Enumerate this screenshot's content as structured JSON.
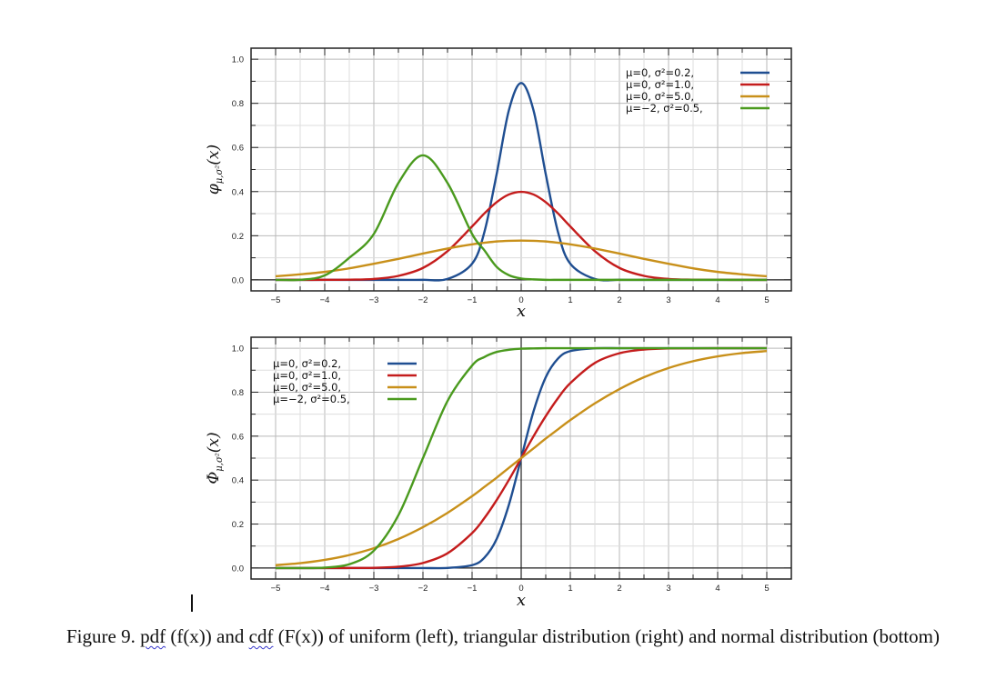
{
  "caption": {
    "prefix": "Figure 9. ",
    "pdf_word": "pdf",
    "pdf_paren": " (f(x)) and ",
    "cdf_word": "cdf",
    "rest": " (F(x)) of uniform (left), triangular distribution (right) and normal distribution (bottom)"
  },
  "chart_data": [
    {
      "type": "line",
      "title": "",
      "xlabel": "x",
      "ylabel": "φμ,σ²(x)",
      "xlim": [
        -5.5,
        5.5
      ],
      "ylim": [
        -0.05,
        1.05
      ],
      "xticks": [
        "−5",
        "−4",
        "−3",
        "−2",
        "−1",
        "0",
        "1",
        "2",
        "3",
        "4",
        "5"
      ],
      "yticks": [
        "0.0",
        "0.2",
        "0.4",
        "0.6",
        "0.8",
        "1.0"
      ],
      "grid": true,
      "legend_position": "top-right",
      "x": [
        -5,
        -4.5,
        -4,
        -3.5,
        -3,
        -2.5,
        -2,
        -1.5,
        -1,
        -0.75,
        -0.5,
        -0.25,
        0,
        0.25,
        0.5,
        0.75,
        1,
        1.5,
        2,
        2.5,
        3,
        3.5,
        4,
        4.5,
        5
      ],
      "series": [
        {
          "name": "μ=0,  σ²=0.2,",
          "color": "#1f4e91",
          "values": [
            0,
            0,
            0,
            0,
            0,
            0,
            0,
            0.004,
            0.073,
            0.216,
            0.479,
            0.769,
            0.892,
            0.769,
            0.479,
            0.216,
            0.073,
            0.004,
            0,
            0,
            0,
            0,
            0,
            0,
            0
          ]
        },
        {
          "name": "μ=0,  σ²=1.0,",
          "color": "#c41c1c",
          "values": [
            0,
            0,
            0.0001,
            0.0009,
            0.004,
            0.018,
            0.054,
            0.13,
            0.242,
            0.301,
            0.352,
            0.387,
            0.399,
            0.387,
            0.352,
            0.301,
            0.242,
            0.13,
            0.054,
            0.018,
            0.004,
            0.0009,
            0.0001,
            0,
            0
          ]
        },
        {
          "name": "μ=0,  σ²=5.0,",
          "color": "#c8901a",
          "values": [
            0.016,
            0.025,
            0.036,
            0.052,
            0.073,
            0.095,
            0.119,
            0.142,
            0.161,
            0.168,
            0.174,
            0.177,
            0.178,
            0.177,
            0.174,
            0.168,
            0.161,
            0.142,
            0.119,
            0.095,
            0.073,
            0.052,
            0.036,
            0.025,
            0.016
          ]
        },
        {
          "name": "μ=−2, σ²=0.5,",
          "color": "#4a9a1e",
          "values": [
            0,
            0,
            0.02,
            0.1,
            0.208,
            0.439,
            0.564,
            0.439,
            0.208,
            0.134,
            0.059,
            0.021,
            0.006,
            0.002,
            0,
            0,
            0,
            0,
            0,
            0,
            0,
            0,
            0,
            0,
            0
          ]
        }
      ]
    },
    {
      "type": "line",
      "title": "",
      "xlabel": "x",
      "ylabel": "Φμ,σ²(x)",
      "xlim": [
        -5.5,
        5.5
      ],
      "ylim": [
        -0.05,
        1.05
      ],
      "xticks": [
        "−5",
        "−4",
        "−3",
        "−2",
        "−1",
        "0",
        "1",
        "2",
        "3",
        "4",
        "5"
      ],
      "yticks": [
        "0.0",
        "0.2",
        "0.4",
        "0.6",
        "0.8",
        "1.0"
      ],
      "grid": true,
      "legend_position": "top-left",
      "x": [
        -5,
        -4.5,
        -4,
        -3.5,
        -3,
        -2.5,
        -2,
        -1.5,
        -1,
        -0.75,
        -0.5,
        -0.25,
        0,
        0.25,
        0.5,
        0.75,
        1,
        1.5,
        2,
        2.5,
        3,
        3.5,
        4,
        4.5,
        5
      ],
      "series": [
        {
          "name": "μ=0,  σ²=0.2,",
          "color": "#1f4e91",
          "values": [
            0,
            0,
            0,
            0,
            0,
            0,
            0,
            0.0004,
            0.013,
            0.047,
            0.132,
            0.288,
            0.5,
            0.712,
            0.868,
            0.953,
            0.987,
            0.9996,
            1,
            1,
            1,
            1,
            1,
            1,
            1
          ]
        },
        {
          "name": "μ=0,  σ²=1.0,",
          "color": "#c41c1c",
          "values": [
            0,
            0,
            0,
            0.0002,
            0.001,
            0.006,
            0.023,
            0.067,
            0.159,
            0.227,
            0.309,
            0.401,
            0.5,
            0.599,
            0.691,
            0.773,
            0.841,
            0.933,
            0.977,
            0.994,
            0.999,
            0.9998,
            1,
            1,
            1
          ]
        },
        {
          "name": "μ=0,  σ²=5.0,",
          "color": "#c8901a",
          "values": [
            0.013,
            0.022,
            0.037,
            0.059,
            0.09,
            0.132,
            0.186,
            0.251,
            0.327,
            0.369,
            0.411,
            0.456,
            0.5,
            0.544,
            0.589,
            0.631,
            0.673,
            0.749,
            0.814,
            0.868,
            0.91,
            0.941,
            0.963,
            0.978,
            0.987
          ]
        },
        {
          "name": "μ=−2, σ²=0.5,",
          "color": "#4a9a1e",
          "values": [
            0,
            0,
            0.002,
            0.017,
            0.079,
            0.24,
            0.5,
            0.76,
            0.921,
            0.96,
            0.983,
            0.993,
            0.998,
            0.999,
            1,
            1,
            1,
            1,
            1,
            1,
            1,
            1,
            1,
            1,
            1
          ]
        }
      ]
    }
  ]
}
